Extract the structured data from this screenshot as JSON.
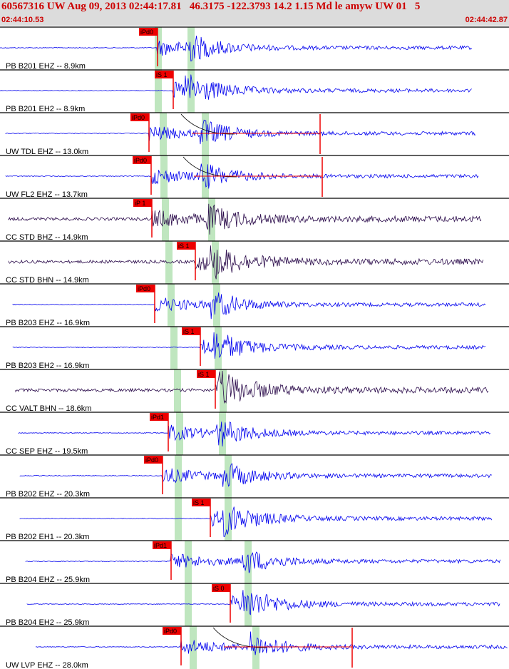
{
  "header": {
    "title": "60567316 UW Aug 09, 2013 02:44:17.81   46.3175 -122.3793 14.2 1.15 Md le amyw UW 01   5",
    "time_start": "02:44:10.53",
    "time_end": "02:44:42.87"
  },
  "colors": {
    "trace_vel": "#0000ee",
    "trace_bb": "#2a0a4a",
    "pick": "#ee0000",
    "band": "#bfe6bf",
    "header_text": "#cc0000",
    "header_bg": "#dcdcdc"
  },
  "traces": [
    {
      "label": "PB B201 EHZ -- 8.9km",
      "color": "vel",
      "pick": "iPd0",
      "onset": 0.245,
      "tail": false
    },
    {
      "label": "PB B201 EH2 -- 8.9km",
      "color": "vel",
      "pick": "iS 1",
      "onset": 0.27,
      "tail": false
    },
    {
      "label": "UW TDL EHZ -- 13.0km",
      "color": "vel",
      "pick": "iPd0",
      "onset": 0.235,
      "tail": true
    },
    {
      "label": "UW FL2 EHZ -- 13.7km",
      "color": "vel",
      "pick": "iPd0",
      "onset": 0.235,
      "tail": true
    },
    {
      "label": "CC STD BHZ -- 14.9km",
      "color": "bb",
      "pick": "iP 1",
      "onset": 0.24,
      "tail": false
    },
    {
      "label": "CC STD BHN -- 14.9km",
      "color": "bb",
      "pick": "iS 1",
      "onset": 0.3,
      "tail": false
    },
    {
      "label": "PB B203 EHZ -- 16.9km",
      "color": "vel",
      "pick": "iPd0",
      "onset": 0.245,
      "tail": false
    },
    {
      "label": "PB B203 EH2 -- 16.9km",
      "color": "vel",
      "pick": "iS 1",
      "onset": 0.31,
      "tail": false
    },
    {
      "label": "CC VALT BHN -- 18.6km",
      "color": "bb",
      "pick": "iS 1",
      "onset": 0.33,
      "tail": false
    },
    {
      "label": "CC SEP EHZ -- 19.5km",
      "color": "vel",
      "pick": "iPd1",
      "onset": 0.26,
      "tail": false
    },
    {
      "label": "PB B202 EHZ -- 20.3km",
      "color": "vel",
      "pick": "iPd0",
      "onset": 0.255,
      "tail": false
    },
    {
      "label": "PB B202 EH1 -- 20.3km",
      "color": "vel",
      "pick": "iS 1",
      "onset": 0.32,
      "tail": false
    },
    {
      "label": "PB B204 EHZ -- 25.9km",
      "color": "vel",
      "pick": "iPd1",
      "onset": 0.265,
      "tail": false
    },
    {
      "label": "PB B204 EH2 -- 25.9km",
      "color": "vel",
      "pick": "iS 0",
      "onset": 0.35,
      "tail": false
    },
    {
      "label": "UW LVP EHZ -- 28.0km",
      "color": "vel",
      "pick": "iPd0",
      "onset": 0.28,
      "tail": true
    }
  ]
}
